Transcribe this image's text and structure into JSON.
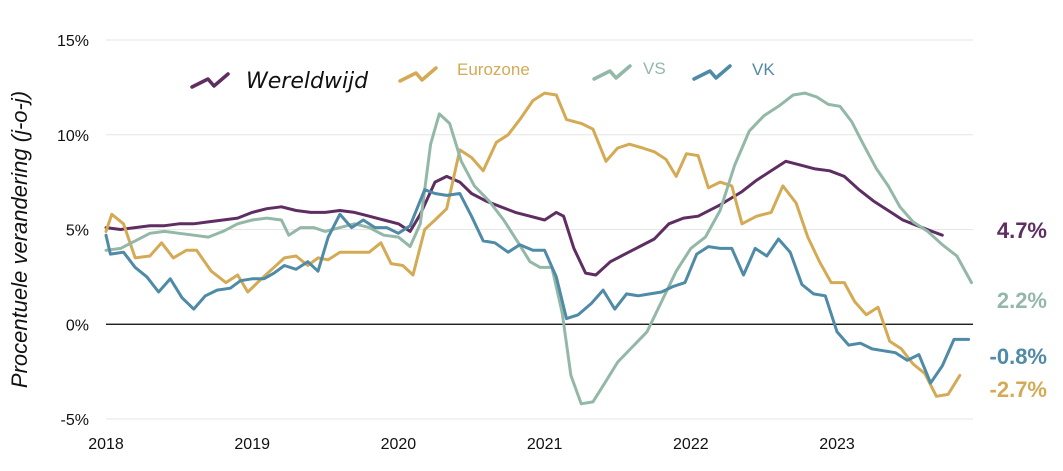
{
  "chart_data": {
    "type": "line",
    "ylabel": "Procentuele verandering (j-o-j)",
    "ylim": [
      -5,
      15
    ],
    "yticks": [
      {
        "value": -5,
        "label": "-5%"
      },
      {
        "value": 0,
        "label": "0%"
      },
      {
        "value": 5,
        "label": "5%"
      },
      {
        "value": 10,
        "label": "10%"
      },
      {
        "value": 15,
        "label": "15%"
      }
    ],
    "xlim": [
      2018.0,
      2023.93
    ],
    "xticks": [
      {
        "value": 2018,
        "label": "2018"
      },
      {
        "value": 2019,
        "label": "2019"
      },
      {
        "value": 2020,
        "label": "2020"
      },
      {
        "value": 2021,
        "label": "2021"
      },
      {
        "value": 2022,
        "label": "2022"
      },
      {
        "value": 2023,
        "label": "2023"
      }
    ],
    "grid": true,
    "legend_position": "top-left",
    "series": [
      {
        "name": "Wereldwijd",
        "color": "#5e2e62",
        "end_label": "4.7%",
        "points": [
          [
            2018.0,
            5.1
          ],
          [
            2018.1,
            5.0
          ],
          [
            2018.2,
            5.1
          ],
          [
            2018.3,
            5.2
          ],
          [
            2018.4,
            5.2
          ],
          [
            2018.5,
            5.3
          ],
          [
            2018.6,
            5.3
          ],
          [
            2018.7,
            5.4
          ],
          [
            2018.8,
            5.5
          ],
          [
            2018.9,
            5.6
          ],
          [
            2019.0,
            5.9
          ],
          [
            2019.1,
            6.1
          ],
          [
            2019.2,
            6.2
          ],
          [
            2019.3,
            6.0
          ],
          [
            2019.4,
            5.9
          ],
          [
            2019.5,
            5.9
          ],
          [
            2019.6,
            6.0
          ],
          [
            2019.7,
            5.9
          ],
          [
            2019.8,
            5.7
          ],
          [
            2019.9,
            5.5
          ],
          [
            2020.0,
            5.3
          ],
          [
            2020.08,
            4.9
          ],
          [
            2020.15,
            5.8
          ],
          [
            2020.25,
            7.5
          ],
          [
            2020.33,
            7.8
          ],
          [
            2020.42,
            7.5
          ],
          [
            2020.5,
            6.9
          ],
          [
            2020.6,
            6.5
          ],
          [
            2020.7,
            6.2
          ],
          [
            2020.8,
            5.9
          ],
          [
            2020.9,
            5.7
          ],
          [
            2021.0,
            5.5
          ],
          [
            2021.08,
            5.9
          ],
          [
            2021.13,
            5.7
          ],
          [
            2021.2,
            4.0
          ],
          [
            2021.28,
            2.7
          ],
          [
            2021.35,
            2.6
          ],
          [
            2021.45,
            3.3
          ],
          [
            2021.6,
            3.9
          ],
          [
            2021.75,
            4.5
          ],
          [
            2021.85,
            5.3
          ],
          [
            2021.95,
            5.6
          ],
          [
            2022.05,
            5.7
          ],
          [
            2022.2,
            6.3
          ],
          [
            2022.35,
            7.0
          ],
          [
            2022.45,
            7.6
          ],
          [
            2022.55,
            8.1
          ],
          [
            2022.65,
            8.6
          ],
          [
            2022.75,
            8.4
          ],
          [
            2022.85,
            8.2
          ],
          [
            2022.95,
            8.1
          ],
          [
            2023.05,
            7.8
          ],
          [
            2023.15,
            7.1
          ],
          [
            2023.25,
            6.5
          ],
          [
            2023.35,
            6.0
          ],
          [
            2023.45,
            5.5
          ],
          [
            2023.55,
            5.2
          ],
          [
            2023.65,
            4.9
          ],
          [
            2023.72,
            4.7
          ]
        ]
      },
      {
        "name": "Eurozone",
        "color": "#d4aa55",
        "end_label": "-2.7%",
        "points": [
          [
            2018.0,
            4.9
          ],
          [
            2018.04,
            5.8
          ],
          [
            2018.12,
            5.3
          ],
          [
            2018.2,
            3.5
          ],
          [
            2018.3,
            3.6
          ],
          [
            2018.38,
            4.3
          ],
          [
            2018.46,
            3.5
          ],
          [
            2018.55,
            3.9
          ],
          [
            2018.62,
            3.9
          ],
          [
            2018.72,
            2.8
          ],
          [
            2018.82,
            2.2
          ],
          [
            2018.9,
            2.6
          ],
          [
            2018.97,
            1.7
          ],
          [
            2019.05,
            2.3
          ],
          [
            2019.12,
            2.8
          ],
          [
            2019.22,
            3.5
          ],
          [
            2019.3,
            3.6
          ],
          [
            2019.38,
            3.1
          ],
          [
            2019.45,
            3.5
          ],
          [
            2019.52,
            3.4
          ],
          [
            2019.6,
            3.8
          ],
          [
            2019.7,
            3.8
          ],
          [
            2019.8,
            3.8
          ],
          [
            2019.88,
            4.3
          ],
          [
            2019.95,
            3.2
          ],
          [
            2020.03,
            3.1
          ],
          [
            2020.1,
            2.6
          ],
          [
            2020.18,
            5.0
          ],
          [
            2020.25,
            5.5
          ],
          [
            2020.33,
            6.1
          ],
          [
            2020.42,
            9.2
          ],
          [
            2020.5,
            8.8
          ],
          [
            2020.58,
            8.1
          ],
          [
            2020.67,
            9.6
          ],
          [
            2020.75,
            10.0
          ],
          [
            2020.83,
            10.8
          ],
          [
            2020.92,
            11.8
          ],
          [
            2021.0,
            12.2
          ],
          [
            2021.08,
            12.1
          ],
          [
            2021.15,
            10.8
          ],
          [
            2021.25,
            10.6
          ],
          [
            2021.33,
            10.3
          ],
          [
            2021.42,
            8.6
          ],
          [
            2021.5,
            9.3
          ],
          [
            2021.58,
            9.5
          ],
          [
            2021.67,
            9.3
          ],
          [
            2021.75,
            9.1
          ],
          [
            2021.83,
            8.7
          ],
          [
            2021.9,
            7.8
          ],
          [
            2021.97,
            9.0
          ],
          [
            2022.05,
            8.9
          ],
          [
            2022.12,
            7.2
          ],
          [
            2022.2,
            7.5
          ],
          [
            2022.28,
            7.3
          ],
          [
            2022.35,
            5.3
          ],
          [
            2022.45,
            5.7
          ],
          [
            2022.55,
            5.9
          ],
          [
            2022.63,
            7.3
          ],
          [
            2022.72,
            6.4
          ],
          [
            2022.8,
            4.6
          ],
          [
            2022.88,
            3.3
          ],
          [
            2022.96,
            2.2
          ],
          [
            2023.05,
            2.2
          ],
          [
            2023.12,
            1.2
          ],
          [
            2023.2,
            0.5
          ],
          [
            2023.28,
            0.9
          ],
          [
            2023.36,
            -0.9
          ],
          [
            2023.44,
            -1.3
          ],
          [
            2023.52,
            -2.1
          ],
          [
            2023.6,
            -2.6
          ],
          [
            2023.68,
            -3.8
          ],
          [
            2023.76,
            -3.7
          ],
          [
            2023.84,
            -2.7
          ]
        ]
      },
      {
        "name": "VS",
        "color": "#94b8a8",
        "end_label": "2.2%",
        "points": [
          [
            2018.0,
            3.9
          ],
          [
            2018.1,
            4.0
          ],
          [
            2018.2,
            4.4
          ],
          [
            2018.3,
            4.8
          ],
          [
            2018.4,
            4.9
          ],
          [
            2018.5,
            4.8
          ],
          [
            2018.6,
            4.7
          ],
          [
            2018.7,
            4.6
          ],
          [
            2018.8,
            4.9
          ],
          [
            2018.9,
            5.3
          ],
          [
            2019.0,
            5.5
          ],
          [
            2019.1,
            5.6
          ],
          [
            2019.2,
            5.5
          ],
          [
            2019.25,
            4.7
          ],
          [
            2019.33,
            5.1
          ],
          [
            2019.42,
            5.1
          ],
          [
            2019.5,
            4.9
          ],
          [
            2019.6,
            5.1
          ],
          [
            2019.7,
            5.3
          ],
          [
            2019.8,
            5.1
          ],
          [
            2019.9,
            4.7
          ],
          [
            2020.0,
            4.6
          ],
          [
            2020.08,
            4.1
          ],
          [
            2020.15,
            5.3
          ],
          [
            2020.22,
            9.5
          ],
          [
            2020.28,
            11.1
          ],
          [
            2020.35,
            10.6
          ],
          [
            2020.43,
            8.6
          ],
          [
            2020.52,
            7.3
          ],
          [
            2020.62,
            6.5
          ],
          [
            2020.72,
            5.5
          ],
          [
            2020.82,
            4.3
          ],
          [
            2020.9,
            3.3
          ],
          [
            2020.97,
            3.0
          ],
          [
            2021.05,
            3.0
          ],
          [
            2021.12,
            0.6
          ],
          [
            2021.18,
            -2.7
          ],
          [
            2021.25,
            -4.2
          ],
          [
            2021.33,
            -4.1
          ],
          [
            2021.42,
            -3.0
          ],
          [
            2021.5,
            -2.0
          ],
          [
            2021.6,
            -1.2
          ],
          [
            2021.7,
            -0.4
          ],
          [
            2021.8,
            1.2
          ],
          [
            2021.9,
            2.8
          ],
          [
            2022.0,
            4.0
          ],
          [
            2022.1,
            4.6
          ],
          [
            2022.2,
            6.0
          ],
          [
            2022.3,
            8.4
          ],
          [
            2022.4,
            10.2
          ],
          [
            2022.5,
            11.0
          ],
          [
            2022.6,
            11.5
          ],
          [
            2022.7,
            12.1
          ],
          [
            2022.78,
            12.2
          ],
          [
            2022.86,
            12.0
          ],
          [
            2022.94,
            11.6
          ],
          [
            2023.02,
            11.5
          ],
          [
            2023.1,
            10.7
          ],
          [
            2023.18,
            9.5
          ],
          [
            2023.27,
            8.2
          ],
          [
            2023.35,
            7.3
          ],
          [
            2023.43,
            6.2
          ],
          [
            2023.52,
            5.4
          ],
          [
            2023.62,
            4.9
          ],
          [
            2023.72,
            4.2
          ],
          [
            2023.82,
            3.6
          ],
          [
            2023.92,
            2.2
          ]
        ]
      },
      {
        "name": "VK",
        "color": "#4f8aa6",
        "end_label": "-0.8%",
        "points": [
          [
            2018.0,
            4.7
          ],
          [
            2018.03,
            3.7
          ],
          [
            2018.12,
            3.8
          ],
          [
            2018.2,
            3.0
          ],
          [
            2018.28,
            2.5
          ],
          [
            2018.36,
            1.7
          ],
          [
            2018.44,
            2.4
          ],
          [
            2018.52,
            1.4
          ],
          [
            2018.6,
            0.8
          ],
          [
            2018.68,
            1.5
          ],
          [
            2018.76,
            1.8
          ],
          [
            2018.85,
            1.9
          ],
          [
            2018.92,
            2.3
          ],
          [
            2019.0,
            2.4
          ],
          [
            2019.08,
            2.4
          ],
          [
            2019.15,
            2.7
          ],
          [
            2019.22,
            3.1
          ],
          [
            2019.3,
            2.9
          ],
          [
            2019.38,
            3.3
          ],
          [
            2019.45,
            2.8
          ],
          [
            2019.52,
            4.6
          ],
          [
            2019.6,
            5.8
          ],
          [
            2019.68,
            5.1
          ],
          [
            2019.76,
            5.5
          ],
          [
            2019.84,
            5.1
          ],
          [
            2019.92,
            5.1
          ],
          [
            2020.0,
            4.8
          ],
          [
            2020.08,
            5.2
          ],
          [
            2020.18,
            7.1
          ],
          [
            2020.25,
            6.9
          ],
          [
            2020.33,
            6.8
          ],
          [
            2020.42,
            6.9
          ],
          [
            2020.5,
            5.7
          ],
          [
            2020.58,
            4.4
          ],
          [
            2020.66,
            4.3
          ],
          [
            2020.75,
            3.8
          ],
          [
            2020.83,
            4.2
          ],
          [
            2020.92,
            3.9
          ],
          [
            2021.0,
            3.9
          ],
          [
            2021.08,
            2.5
          ],
          [
            2021.15,
            0.3
          ],
          [
            2021.23,
            0.5
          ],
          [
            2021.32,
            1.1
          ],
          [
            2021.4,
            1.8
          ],
          [
            2021.48,
            0.8
          ],
          [
            2021.56,
            1.6
          ],
          [
            2021.64,
            1.5
          ],
          [
            2021.72,
            1.6
          ],
          [
            2021.8,
            1.7
          ],
          [
            2021.88,
            2.0
          ],
          [
            2021.96,
            2.2
          ],
          [
            2022.04,
            3.7
          ],
          [
            2022.12,
            4.1
          ],
          [
            2022.2,
            4.0
          ],
          [
            2022.28,
            4.0
          ],
          [
            2022.36,
            2.6
          ],
          [
            2022.44,
            4.0
          ],
          [
            2022.52,
            3.6
          ],
          [
            2022.6,
            4.5
          ],
          [
            2022.68,
            3.8
          ],
          [
            2022.76,
            2.1
          ],
          [
            2022.84,
            1.6
          ],
          [
            2022.92,
            1.5
          ],
          [
            2023.0,
            -0.4
          ],
          [
            2023.08,
            -1.1
          ],
          [
            2023.16,
            -1.0
          ],
          [
            2023.24,
            -1.3
          ],
          [
            2023.32,
            -1.4
          ],
          [
            2023.4,
            -1.5
          ],
          [
            2023.48,
            -1.9
          ],
          [
            2023.56,
            -1.6
          ],
          [
            2023.64,
            -3.1
          ],
          [
            2023.72,
            -2.2
          ],
          [
            2023.8,
            -0.8
          ],
          [
            2023.9,
            -0.8
          ]
        ]
      }
    ]
  }
}
